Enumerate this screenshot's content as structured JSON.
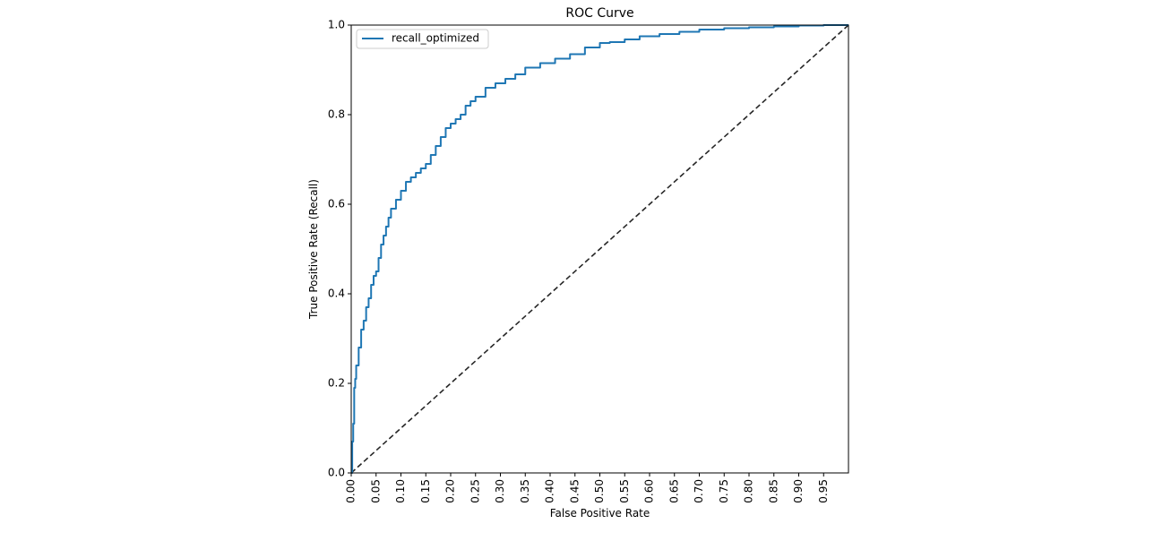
{
  "chart_data": {
    "type": "line",
    "title": "ROC Curve",
    "xlabel": "False Positive Rate",
    "ylabel": "True Positive Rate (Recall)",
    "xlim": [
      0.0,
      1.0
    ],
    "ylim": [
      0.0,
      1.0
    ],
    "x_ticks": [
      "0.00",
      "0.05",
      "0.10",
      "0.15",
      "0.20",
      "0.25",
      "0.30",
      "0.35",
      "0.40",
      "0.45",
      "0.50",
      "0.55",
      "0.60",
      "0.65",
      "0.70",
      "0.75",
      "0.80",
      "0.85",
      "0.90",
      "0.95"
    ],
    "y_ticks": [
      "0.0",
      "0.2",
      "0.4",
      "0.6",
      "0.8",
      "1.0"
    ],
    "grid": false,
    "legend_position": "top-left",
    "colors": {
      "roc": "#1f77b4",
      "baseline": "#000000"
    },
    "series": [
      {
        "name": "recall_optimized",
        "x": [
          0.0,
          0.002,
          0.004,
          0.006,
          0.008,
          0.01,
          0.015,
          0.02,
          0.025,
          0.03,
          0.035,
          0.04,
          0.045,
          0.05,
          0.055,
          0.06,
          0.065,
          0.07,
          0.075,
          0.08,
          0.09,
          0.1,
          0.11,
          0.12,
          0.13,
          0.14,
          0.15,
          0.16,
          0.17,
          0.18,
          0.19,
          0.2,
          0.21,
          0.22,
          0.23,
          0.24,
          0.25,
          0.27,
          0.29,
          0.31,
          0.33,
          0.35,
          0.38,
          0.41,
          0.44,
          0.47,
          0.5,
          0.52,
          0.55,
          0.58,
          0.62,
          0.66,
          0.7,
          0.75,
          0.8,
          0.85,
          0.9,
          0.95,
          1.0
        ],
        "y": [
          0.0,
          0.07,
          0.11,
          0.19,
          0.21,
          0.24,
          0.28,
          0.32,
          0.34,
          0.37,
          0.39,
          0.42,
          0.44,
          0.45,
          0.48,
          0.51,
          0.53,
          0.55,
          0.57,
          0.59,
          0.61,
          0.63,
          0.65,
          0.66,
          0.67,
          0.68,
          0.69,
          0.71,
          0.73,
          0.75,
          0.77,
          0.78,
          0.79,
          0.8,
          0.82,
          0.83,
          0.84,
          0.86,
          0.87,
          0.88,
          0.89,
          0.905,
          0.915,
          0.925,
          0.935,
          0.95,
          0.96,
          0.962,
          0.968,
          0.975,
          0.98,
          0.985,
          0.99,
          0.993,
          0.995,
          0.997,
          0.999,
          1.0,
          1.0
        ]
      },
      {
        "x": [
          0.0,
          1.0
        ],
        "y": [
          0.0,
          1.0
        ]
      }
    ]
  }
}
